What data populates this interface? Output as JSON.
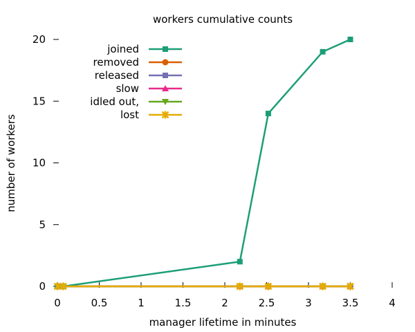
{
  "chart_data": {
    "type": "line",
    "title": "workers cumulative counts",
    "xlabel": "manager lifetime in minutes",
    "ylabel": "number of workers",
    "xlim": [
      0,
      4
    ],
    "ylim": [
      0,
      20
    ],
    "xticks": [
      0,
      0.5,
      1,
      1.5,
      2,
      2.5,
      3,
      3.5,
      4
    ],
    "xtick_labels": [
      "0",
      "0.5",
      "1",
      "1.5",
      "2",
      "2.5",
      "3",
      "3.5",
      "4"
    ],
    "yticks": [
      0,
      5,
      10,
      15,
      20
    ],
    "ytick_labels": [
      "0",
      "5",
      "10",
      "15",
      "20"
    ],
    "grid": false,
    "legend_position": "top-left",
    "series": [
      {
        "name": "joined",
        "color": "#1b9e77",
        "marker": "square",
        "x": [
          0,
          0.07,
          2.18,
          2.52,
          3.17,
          3.5
        ],
        "y": [
          0,
          0,
          2,
          14,
          19,
          20
        ]
      },
      {
        "name": "removed",
        "color": "#d95f02",
        "marker": "circle",
        "x": [
          0,
          0.07,
          2.18,
          2.52,
          3.17,
          3.5
        ],
        "y": [
          0,
          0,
          0,
          0,
          0,
          0
        ]
      },
      {
        "name": "released",
        "color": "#7570b3",
        "marker": "square",
        "x": [
          0,
          0.07,
          2.18,
          2.52,
          3.17,
          3.5
        ],
        "y": [
          0,
          0,
          0,
          0,
          0,
          0
        ]
      },
      {
        "name": "slow",
        "color": "#e7298a",
        "marker": "triangle-up",
        "x": [
          0,
          0.07,
          2.18,
          2.52,
          3.17,
          3.5
        ],
        "y": [
          0,
          0,
          0,
          0,
          0,
          0
        ]
      },
      {
        "name": "idled out,",
        "color": "#66a61e",
        "marker": "triangle-down",
        "x": [
          0,
          0.07,
          2.18,
          2.52,
          3.17,
          3.5
        ],
        "y": [
          0,
          0,
          0,
          0,
          0,
          0
        ]
      },
      {
        "name": "lost",
        "color": "#e6ab02",
        "marker": "star",
        "x": [
          0,
          0.07,
          2.18,
          2.52,
          3.17,
          3.5
        ],
        "y": [
          0,
          0,
          0,
          0,
          0,
          0
        ]
      }
    ]
  }
}
